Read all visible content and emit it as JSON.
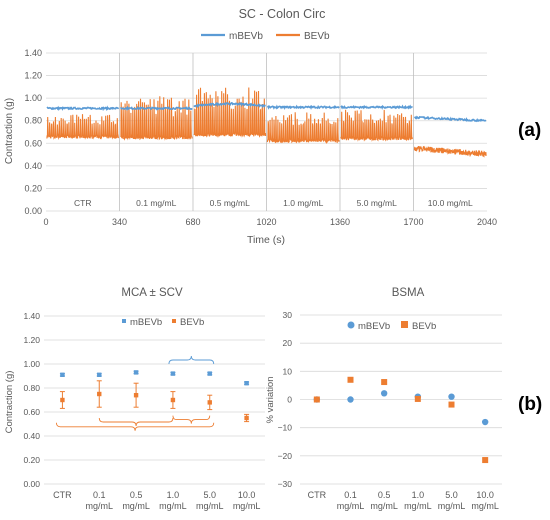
{
  "colors": {
    "mBEVb": "#5b9bd5",
    "BEVb": "#ed7d31",
    "grid": "#d9d9d9",
    "axis": "#bfbfbf",
    "text": "#595959"
  },
  "panel_labels": {
    "a": "(a)",
    "b": "(b)"
  },
  "chart_data": [
    {
      "id": "trace",
      "type": "line",
      "title": "SC - Colon Circ",
      "xlabel": "Time (s)",
      "ylabel": "Contraction (g)",
      "xlim": [
        0,
        2040
      ],
      "ylim": [
        0,
        1.4
      ],
      "xticks": [
        "0",
        "340",
        "680",
        "1020",
        "1360",
        "1700",
        "2040"
      ],
      "yticks": [
        "0.00",
        "0.20",
        "0.40",
        "0.60",
        "0.80",
        "1.00",
        "1.20",
        "1.40"
      ],
      "legend": "top",
      "grid": true,
      "segments": [
        "CTR",
        "0.1 mg/mL",
        "0.5 mg/mL",
        "1.0 mg/mL",
        "5.0 mg/mL",
        "10.0 mg/mL"
      ],
      "series": [
        {
          "name": "mBEVb",
          "segment_baseline": [
            0.91,
            0.91,
            0.93,
            0.92,
            0.92,
            0.83
          ]
        },
        {
          "name": "BEVb",
          "segment_min": [
            0.64,
            0.62,
            0.64,
            0.6,
            0.62,
            0.5
          ],
          "segment_max": [
            0.86,
            1.02,
            1.1,
            0.88,
            0.9,
            0.62
          ]
        }
      ]
    },
    {
      "id": "mca",
      "type": "scatter",
      "title": "MCA ± SCV",
      "ylabel": "Contraction (g)",
      "ylim": [
        0,
        1.4
      ],
      "yticks": [
        "0.00",
        "0.20",
        "0.40",
        "0.60",
        "0.80",
        "1.00",
        "1.20",
        "1.40"
      ],
      "categories": [
        [
          "CTR"
        ],
        [
          "0.1",
          "mg/mL"
        ],
        [
          "0.5",
          "mg/mL"
        ],
        [
          "1.0",
          "mg/mL"
        ],
        [
          "5.0",
          "mg/mL"
        ],
        [
          "10.0",
          "mg/mL"
        ]
      ],
      "legend": "top",
      "grid": true,
      "series": [
        {
          "name": "mBEVb",
          "values": [
            0.91,
            0.91,
            0.93,
            0.92,
            0.92,
            0.84
          ],
          "errors": [
            0.01,
            0.01,
            0.01,
            0.01,
            0.01,
            0.01
          ]
        },
        {
          "name": "BEVb",
          "values": [
            0.7,
            0.75,
            0.74,
            0.7,
            0.68,
            0.55
          ],
          "errors": [
            0.07,
            0.11,
            0.1,
            0.07,
            0.06,
            0.03
          ]
        }
      ]
    },
    {
      "id": "bsma",
      "type": "scatter",
      "title": "BSMA",
      "ylabel": "% variation",
      "ylim": [
        -30,
        30
      ],
      "yticks": [
        "30",
        "20",
        "10",
        "0",
        "−10",
        "−20",
        "−30"
      ],
      "categories": [
        [
          "CTR"
        ],
        [
          "0.1",
          "mg/mL"
        ],
        [
          "0.5",
          "mg/mL"
        ],
        [
          "1.0",
          "mg/mL"
        ],
        [
          "5.0",
          "mg/mL"
        ],
        [
          "10.0",
          "mg/mL"
        ]
      ],
      "legend": "top",
      "grid": true,
      "series": [
        {
          "name": "mBEVb",
          "values": [
            0,
            0,
            2.2,
            1.0,
            1.0,
            -8.0
          ]
        },
        {
          "name": "BEVb",
          "values": [
            0,
            7.0,
            6.2,
            0.2,
            -1.8,
            -21.5
          ]
        }
      ]
    }
  ]
}
